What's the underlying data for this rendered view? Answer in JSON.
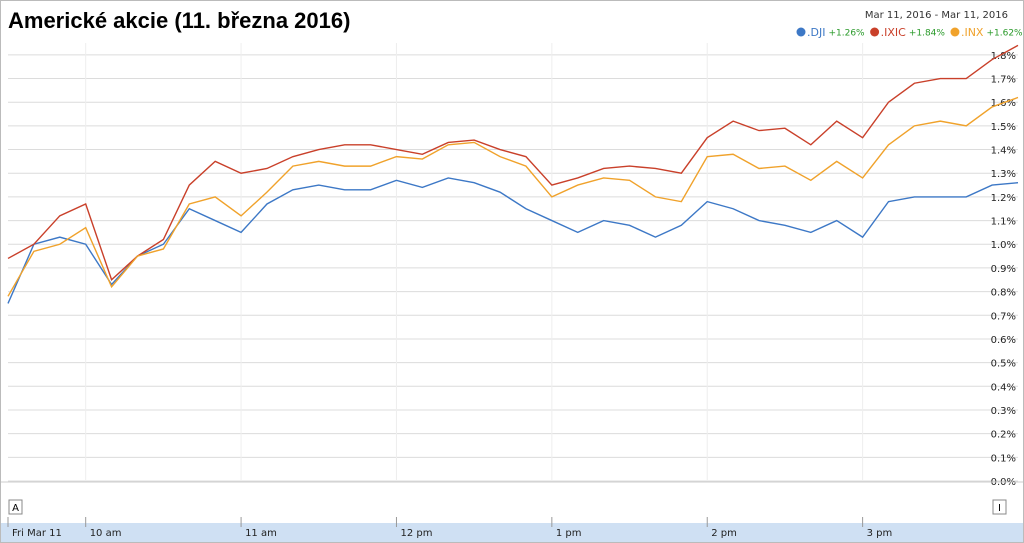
{
  "chart_data": {
    "type": "line",
    "title": "Americké akcie (11. března 2016)",
    "date_range": "Mar 11, 2016  -  Mar 11, 2016",
    "annotations": [
      "A",
      "I"
    ],
    "x": [
      0,
      10,
      20,
      30,
      40,
      50,
      60,
      70,
      80,
      90,
      100,
      110,
      120,
      130,
      140,
      150,
      160,
      170,
      180,
      190,
      200,
      210,
      220,
      230,
      240,
      250,
      260,
      270,
      280,
      290,
      300,
      310,
      320,
      330,
      340,
      350,
      360,
      370,
      380,
      390
    ],
    "xlim": [
      0,
      390
    ],
    "xticks": [
      {
        "value": 0,
        "label": "Fri Mar 11"
      },
      {
        "value": 30,
        "label": "10 am"
      },
      {
        "value": 90,
        "label": "11 am"
      },
      {
        "value": 150,
        "label": "12 pm"
      },
      {
        "value": 210,
        "label": "1 pm"
      },
      {
        "value": 270,
        "label": "2 pm"
      },
      {
        "value": 330,
        "label": "3 pm"
      }
    ],
    "ylim": [
      0,
      1.85
    ],
    "yticks": [
      {
        "value": 0,
        "label": "0.0%"
      },
      {
        "value": 0.1,
        "label": "0.1%"
      },
      {
        "value": 0.2,
        "label": "0.2%"
      },
      {
        "value": 0.3,
        "label": "0.3%"
      },
      {
        "value": 0.4,
        "label": "0.4%"
      },
      {
        "value": 0.5,
        "label": "0.5%"
      },
      {
        "value": 0.6,
        "label": "0.6%"
      },
      {
        "value": 0.7,
        "label": "0.7%"
      },
      {
        "value": 0.8,
        "label": "0.8%"
      },
      {
        "value": 0.9,
        "label": "0.9%"
      },
      {
        "value": 1.0,
        "label": "1.0%"
      },
      {
        "value": 1.1,
        "label": "1.1%"
      },
      {
        "value": 1.2,
        "label": "1.2%"
      },
      {
        "value": 1.3,
        "label": "1.3%"
      },
      {
        "value": 1.4,
        "label": "1.4%"
      },
      {
        "value": 1.5,
        "label": "1.5%"
      },
      {
        "value": 1.6,
        "label": "1.6%"
      },
      {
        "value": 1.7,
        "label": "1.7%"
      },
      {
        "value": 1.8,
        "label": "1.8%"
      }
    ],
    "grid": true,
    "series": [
      {
        "name": ".DJI",
        "change": "+1.26%",
        "color": "#3d78c6",
        "values": [
          0.75,
          1.0,
          1.03,
          1.0,
          0.83,
          0.95,
          1.0,
          1.15,
          1.1,
          1.05,
          1.17,
          1.23,
          1.25,
          1.23,
          1.23,
          1.27,
          1.24,
          1.28,
          1.26,
          1.22,
          1.15,
          1.1,
          1.05,
          1.1,
          1.08,
          1.03,
          1.08,
          1.18,
          1.15,
          1.1,
          1.08,
          1.05,
          1.1,
          1.03,
          1.18,
          1.2,
          1.2,
          1.2,
          1.25,
          1.26
        ]
      },
      {
        "name": ".IXIC",
        "change": "+1.84%",
        "color": "#c9402a",
        "values": [
          0.94,
          1.0,
          1.12,
          1.17,
          0.85,
          0.95,
          1.02,
          1.25,
          1.35,
          1.3,
          1.32,
          1.37,
          1.4,
          1.42,
          1.42,
          1.4,
          1.38,
          1.43,
          1.44,
          1.4,
          1.37,
          1.25,
          1.28,
          1.32,
          1.33,
          1.32,
          1.3,
          1.45,
          1.52,
          1.48,
          1.49,
          1.42,
          1.52,
          1.45,
          1.6,
          1.68,
          1.7,
          1.7,
          1.78,
          1.84
        ]
      },
      {
        "name": ".INX",
        "change": "+1.62%",
        "color": "#f0a22b",
        "values": [
          0.78,
          0.97,
          1.0,
          1.07,
          0.82,
          0.95,
          0.98,
          1.17,
          1.2,
          1.12,
          1.22,
          1.33,
          1.35,
          1.33,
          1.33,
          1.37,
          1.36,
          1.42,
          1.43,
          1.37,
          1.33,
          1.2,
          1.25,
          1.28,
          1.27,
          1.2,
          1.18,
          1.37,
          1.38,
          1.32,
          1.33,
          1.27,
          1.35,
          1.28,
          1.42,
          1.5,
          1.52,
          1.5,
          1.58,
          1.62
        ]
      }
    ]
  }
}
